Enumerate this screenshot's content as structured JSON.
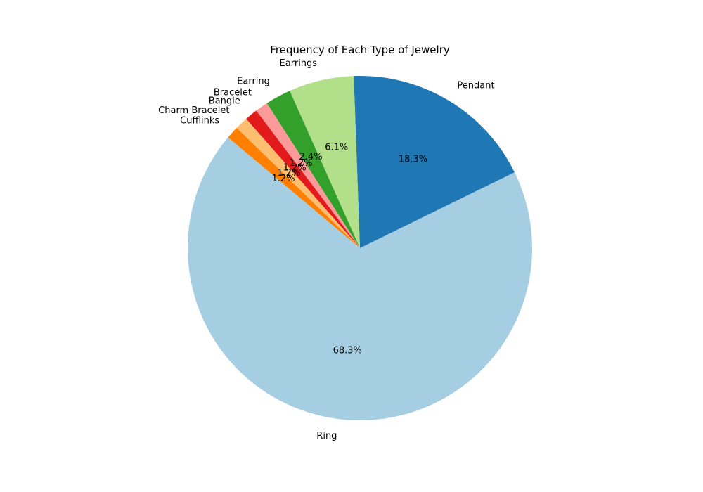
{
  "chart_data": {
    "type": "pie",
    "title": "Frequency of Each Type of Jewelry",
    "categories": [
      "Ring",
      "Pendant",
      "Earrings",
      "Earring",
      "Bracelet",
      "Bangle",
      "Charm Bracelet",
      "Cufflinks"
    ],
    "values": [
      68.3,
      18.3,
      6.1,
      2.4,
      1.2,
      1.2,
      1.2,
      1.2
    ],
    "percent_labels": [
      "68.3%",
      "18.3%",
      "6.1%",
      "2.4%",
      "1.2%",
      "1.2%",
      "1.2%",
      "1.2%"
    ],
    "colors": [
      "#a6cee3",
      "#1f78b4",
      "#b2df8a",
      "#33a02c",
      "#fb9a99",
      "#e31a1c",
      "#fdbf6f",
      "#ff7f00"
    ],
    "start_angle_deg": 140,
    "direction": "counterclockwise"
  }
}
